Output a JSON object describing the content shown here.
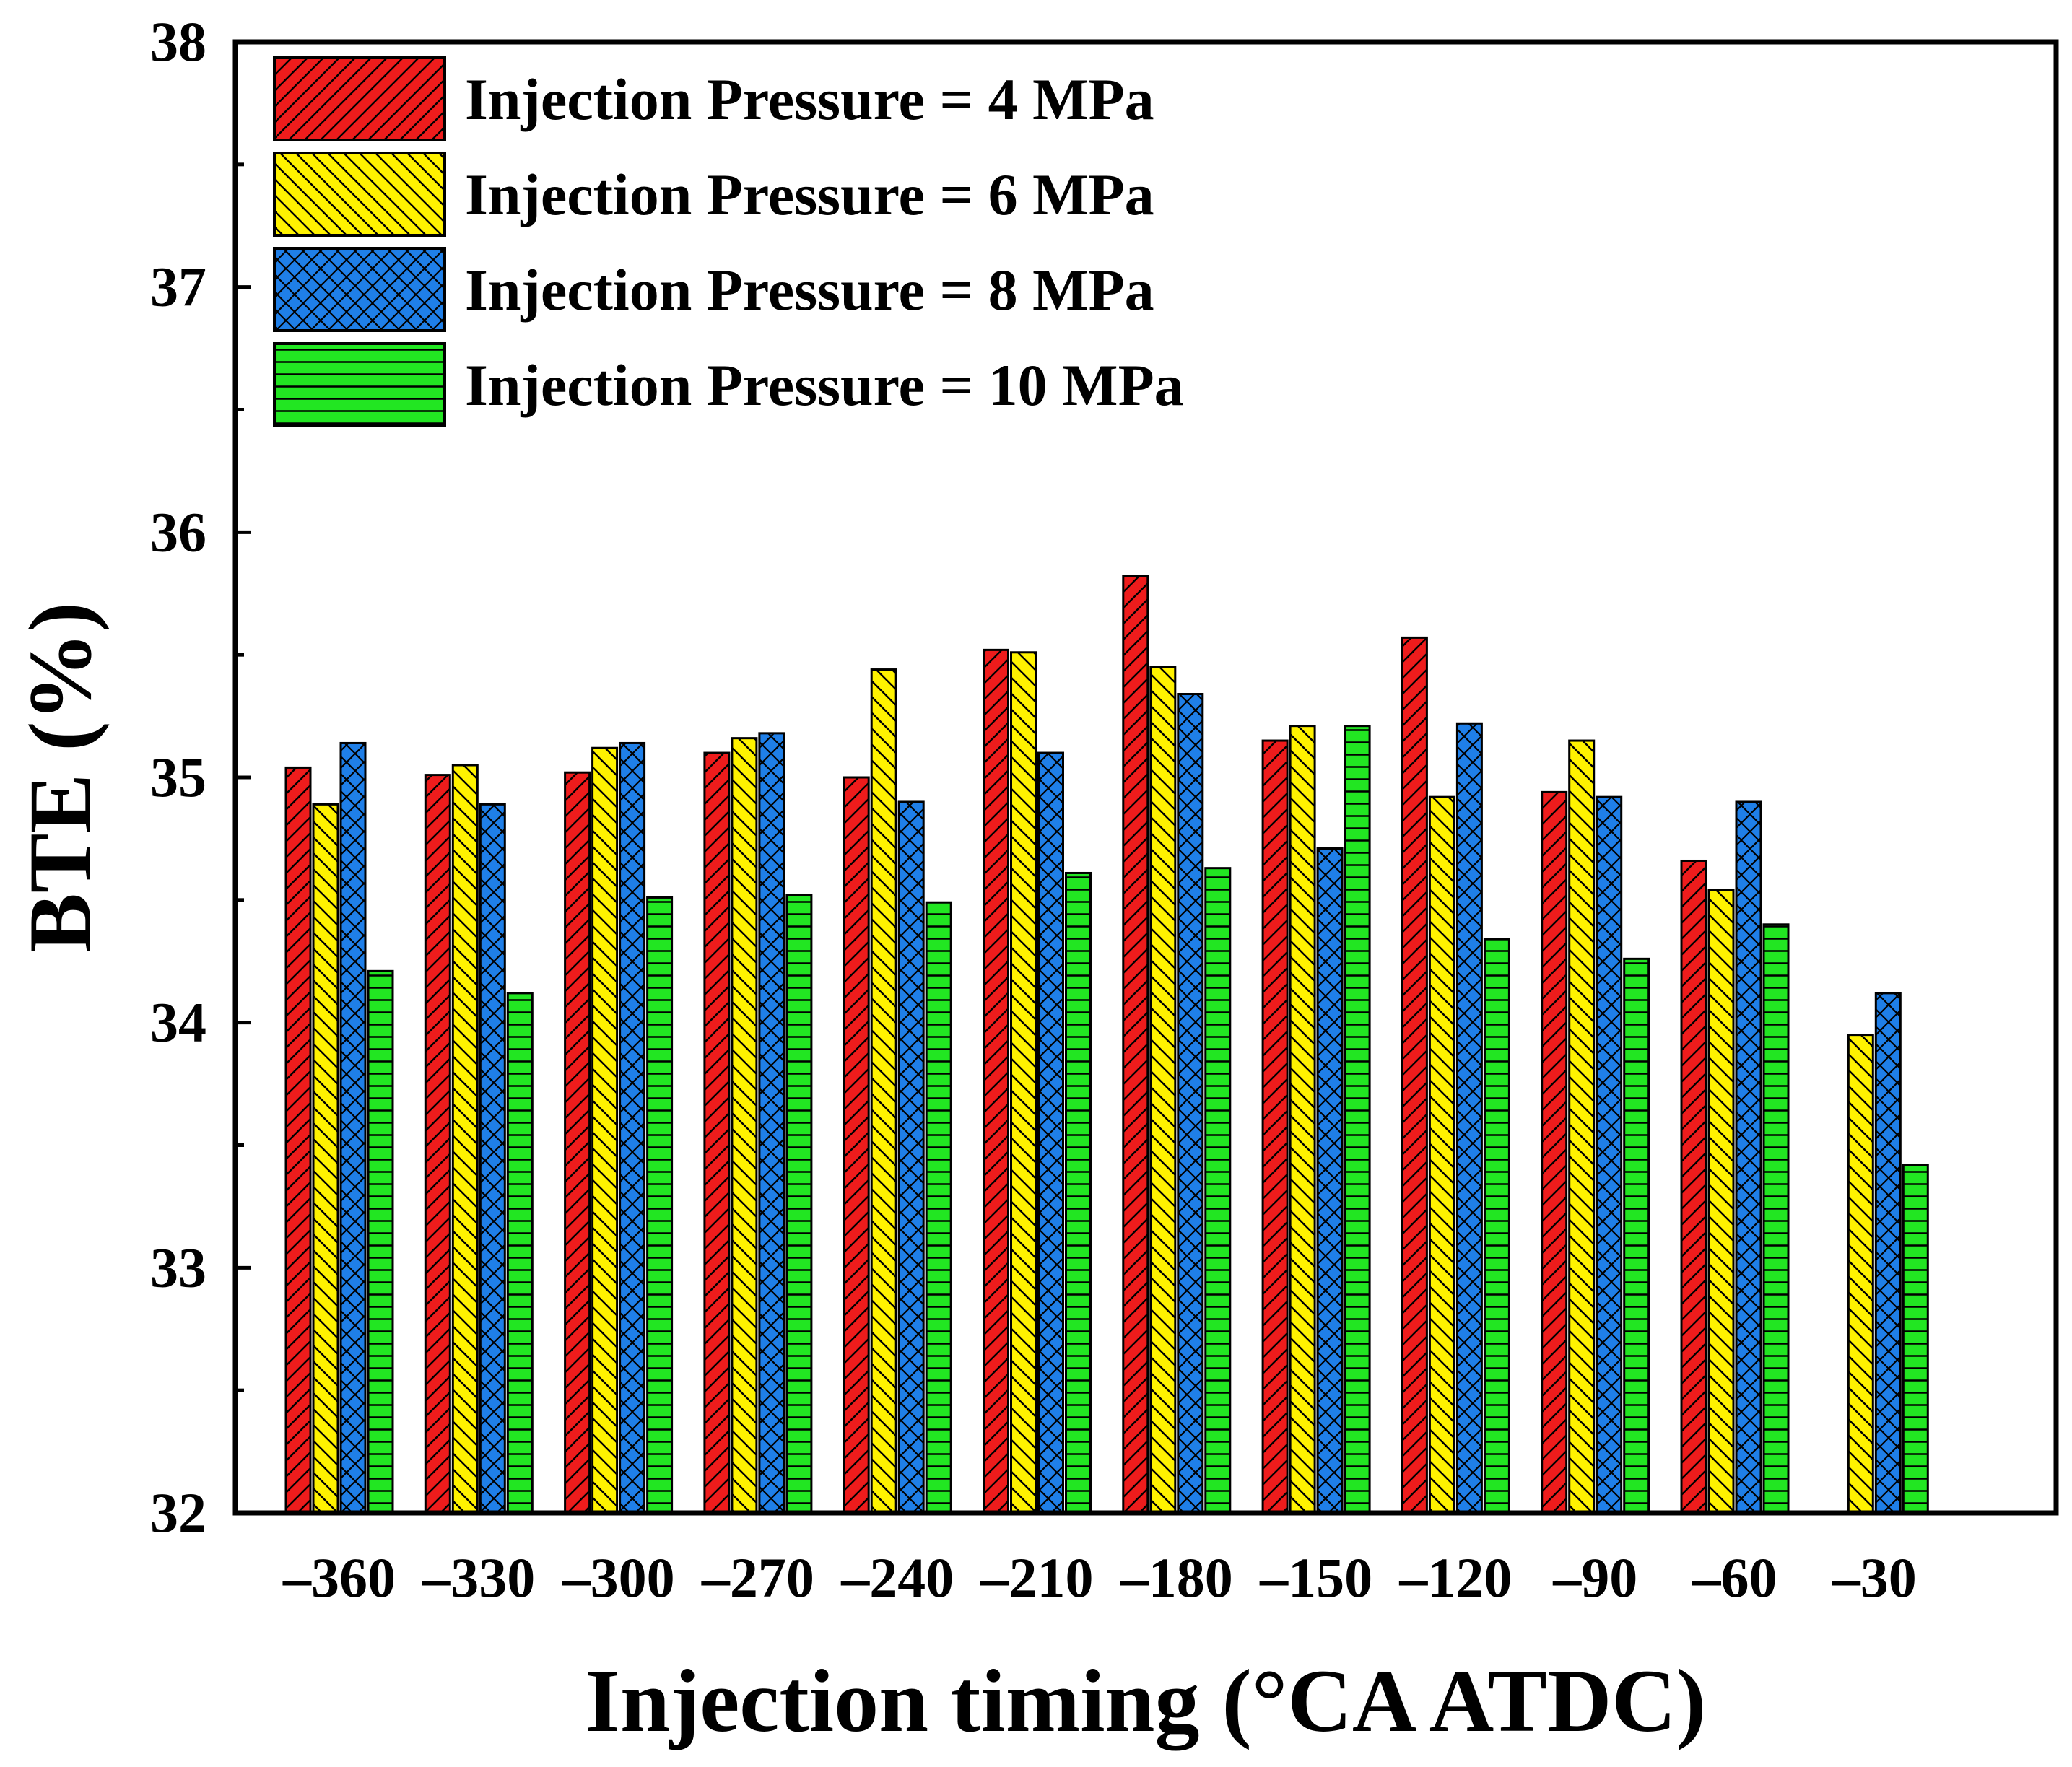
{
  "chart_data": {
    "type": "bar",
    "title": "",
    "xlabel": "Injection timing (°CA ATDC)",
    "ylabel": "BTE (%)",
    "ylim": [
      32,
      38
    ],
    "yticks": [
      "32",
      "33",
      "34",
      "35",
      "36",
      "37",
      "38"
    ],
    "categories": [
      "–360",
      "–330",
      "–300",
      "–270",
      "–240",
      "–210",
      "–180",
      "–150",
      "–120",
      "–90",
      "–60",
      "–30"
    ],
    "legend_position": "top-left",
    "series": [
      {
        "name": "Injection Pressure = 4 MPa",
        "color": "#ee1c1c",
        "pattern": "diagonal-forward",
        "values": [
          35.04,
          35.01,
          35.02,
          35.1,
          35.0,
          35.52,
          35.82,
          35.15,
          35.57,
          34.94,
          34.66,
          null
        ]
      },
      {
        "name": "Injection Pressure = 6 MPa",
        "color": "#fff200",
        "pattern": "diagonal-back",
        "values": [
          34.89,
          35.05,
          35.12,
          35.16,
          35.44,
          35.51,
          35.45,
          35.21,
          34.92,
          35.15,
          34.54,
          33.95
        ]
      },
      {
        "name": "Injection Pressure = 8 MPa",
        "color": "#1f7fe8",
        "pattern": "crosshatch",
        "values": [
          35.14,
          34.89,
          35.14,
          35.18,
          34.9,
          35.1,
          35.34,
          34.71,
          35.22,
          34.92,
          34.9,
          34.12
        ]
      },
      {
        "name": "Injection Pressure = 10 MPa",
        "color": "#22e622",
        "pattern": "horizontal",
        "values": [
          34.21,
          34.12,
          34.51,
          34.52,
          34.49,
          34.61,
          34.63,
          35.21,
          34.34,
          34.26,
          34.4,
          33.42
        ]
      }
    ]
  }
}
